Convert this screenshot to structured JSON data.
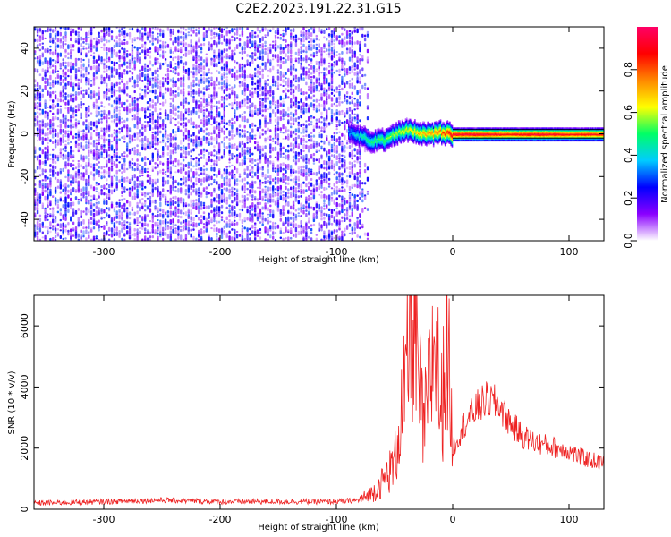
{
  "title": "C2E2.2023.191.22.31.G15",
  "chart_data": [
    {
      "type": "heatmap",
      "xlabel": "Height of straight line (km)",
      "ylabel": "Frequency (Hz)",
      "xlim": [
        -360,
        130
      ],
      "ylim": [
        -50,
        50
      ],
      "xticks": [
        -300,
        -200,
        -100,
        0,
        100
      ],
      "yticks": [
        -40,
        -20,
        0,
        20,
        40
      ],
      "colorbar": {
        "label": "Normalized spectral amplitude",
        "range": [
          0,
          1
        ],
        "ticks": [
          "0.0",
          "0.2",
          "0.4",
          "0.6",
          "0.8"
        ],
        "tick_values": [
          0,
          0.2,
          0.4,
          0.6,
          0.8
        ],
        "colors": [
          "#ffffff",
          "#8a00ff",
          "#0000ff",
          "#00ccff",
          "#00ff66",
          "#ffff00",
          "#ff8800",
          "#ff0000",
          "#ff0066"
        ]
      },
      "noise_region": {
        "x_range": [
          -360,
          -80
        ],
        "frequency_range": [
          -50,
          50
        ],
        "amplitude_range": [
          0.05,
          0.3
        ]
      },
      "signal_track": [
        {
          "x": -90,
          "f": 1,
          "amp": 0.35
        },
        {
          "x": -80,
          "f": -1,
          "amp": 0.45
        },
        {
          "x": -70,
          "f": -3,
          "amp": 0.5
        },
        {
          "x": -60,
          "f": -3,
          "amp": 0.55
        },
        {
          "x": -50,
          "f": 0,
          "amp": 0.6
        },
        {
          "x": -40,
          "f": 2,
          "amp": 0.65
        },
        {
          "x": -30,
          "f": 1,
          "amp": 0.7
        },
        {
          "x": -20,
          "f": 0,
          "amp": 0.75
        },
        {
          "x": -10,
          "f": 1,
          "amp": 0.8
        },
        {
          "x": 0,
          "f": 0,
          "amp": 0.95
        },
        {
          "x": 25,
          "f": 0,
          "amp": 0.95
        },
        {
          "x": 50,
          "f": 0,
          "amp": 0.9
        },
        {
          "x": 75,
          "f": 0,
          "amp": 0.95
        },
        {
          "x": 100,
          "f": 0,
          "amp": 0.9
        },
        {
          "x": 130,
          "f": 0,
          "amp": 0.9
        }
      ]
    },
    {
      "type": "line",
      "xlabel": "Height of straight line (km)",
      "ylabel": "SNR (10 * v/v)",
      "xlim": [
        -360,
        130
      ],
      "ylim": [
        0,
        7000
      ],
      "xticks": [
        -300,
        -200,
        -100,
        0,
        100
      ],
      "yticks": [
        0,
        2000,
        4000,
        6000
      ],
      "series": [
        {
          "color": "#ee2222",
          "x": [
            -360,
            -300,
            -250,
            -200,
            -150,
            -100,
            -80,
            -70,
            -60,
            -50,
            -45,
            -40,
            -35,
            -30,
            -25,
            -20,
            -15,
            -10,
            -5,
            0,
            10,
            20,
            30,
            40,
            50,
            60,
            70,
            80,
            90,
            100,
            110,
            120,
            130
          ],
          "y": [
            200,
            250,
            300,
            250,
            250,
            250,
            300,
            500,
            900,
            1500,
            3000,
            4000,
            6800,
            4500,
            2500,
            4000,
            5800,
            3000,
            5900,
            2000,
            2800,
            3300,
            3600,
            3400,
            2800,
            2400,
            2200,
            2100,
            2000,
            1900,
            1700,
            1600,
            1500
          ]
        }
      ]
    }
  ]
}
